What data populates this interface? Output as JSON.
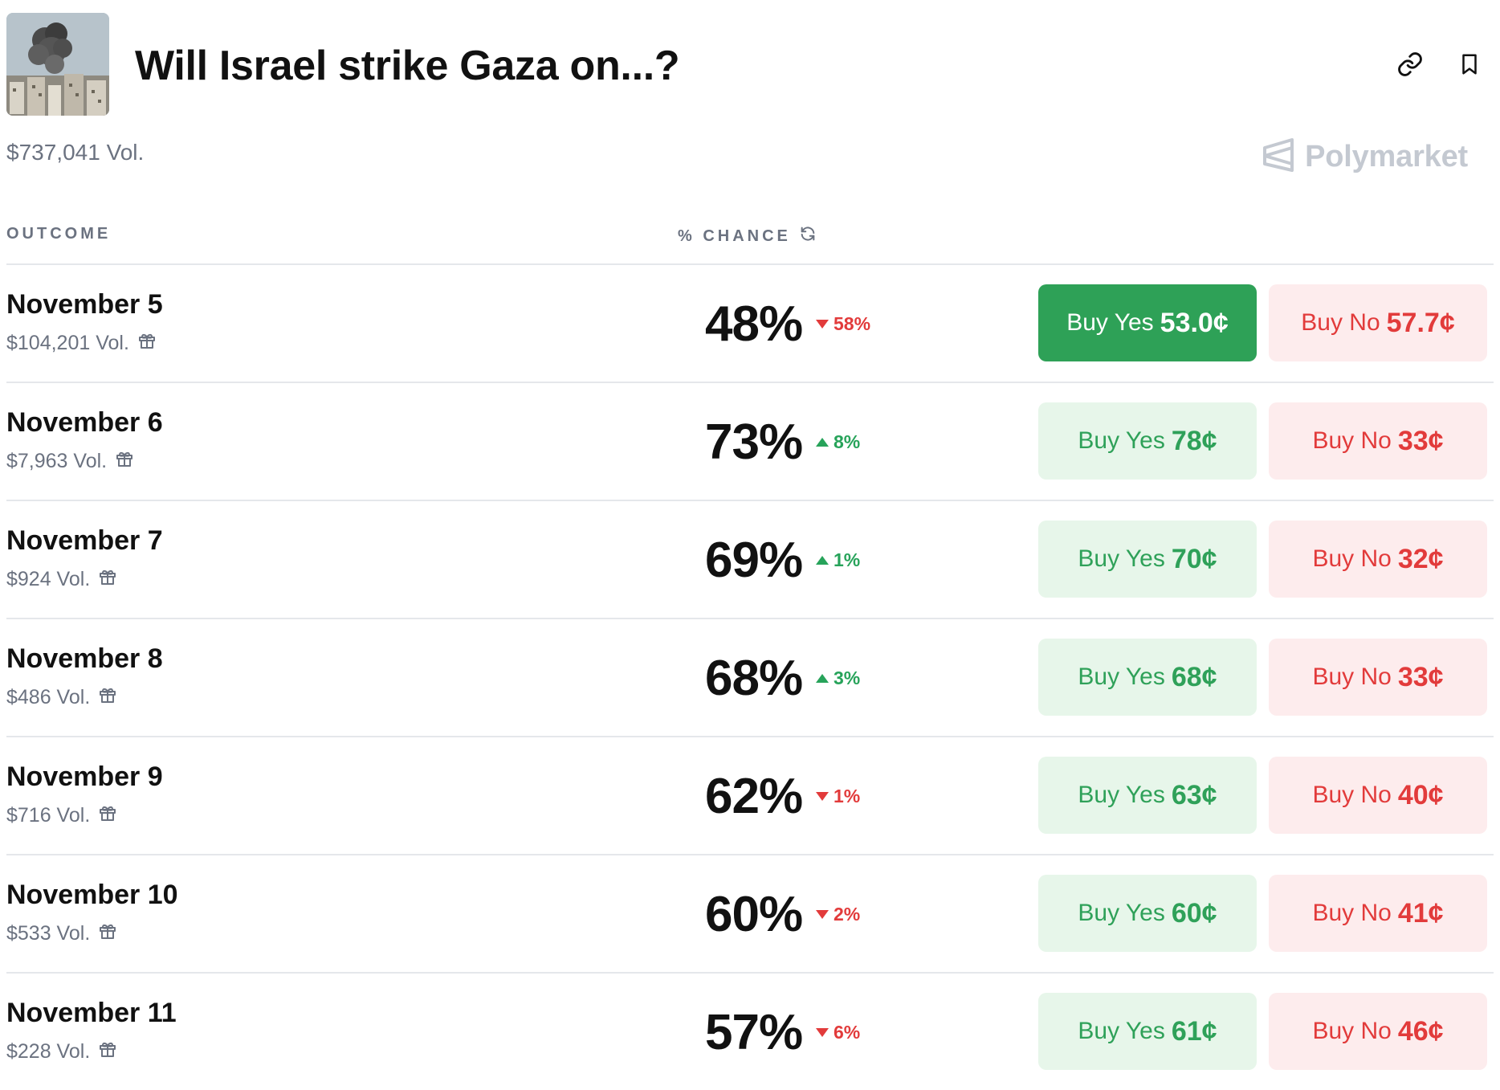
{
  "header": {
    "title": "Will Israel strike Gaza on...?",
    "thumbnail_icon": "smoke-over-city-image",
    "link_icon": "link-icon",
    "bookmark_icon": "bookmark-icon"
  },
  "summary": {
    "total_volume": "$737,041 Vol.",
    "brand": "Polymarket"
  },
  "columns": {
    "outcome": "OUTCOME",
    "chance": "% CHANCE",
    "chance_icon": "refresh-icon"
  },
  "colors": {
    "yes_green": "#2ea157",
    "yes_light": "#e7f6ea",
    "no_red": "#e23b3b",
    "no_light": "#fdeced"
  },
  "rows": [
    {
      "name": "November 5",
      "volume": "$104,201 Vol.",
      "chance": "48%",
      "delta": "58%",
      "direction": "down",
      "yes_label": "Buy Yes",
      "yes_price": "53.0¢",
      "no_label": "Buy No",
      "no_price": "57.7¢"
    },
    {
      "name": "November 6",
      "volume": "$7,963 Vol.",
      "chance": "73%",
      "delta": "8%",
      "direction": "up",
      "yes_label": "Buy Yes",
      "yes_price": "78¢",
      "no_label": "Buy No",
      "no_price": "33¢"
    },
    {
      "name": "November 7",
      "volume": "$924 Vol.",
      "chance": "69%",
      "delta": "1%",
      "direction": "up",
      "yes_label": "Buy Yes",
      "yes_price": "70¢",
      "no_label": "Buy No",
      "no_price": "32¢"
    },
    {
      "name": "November 8",
      "volume": "$486 Vol.",
      "chance": "68%",
      "delta": "3%",
      "direction": "up",
      "yes_label": "Buy Yes",
      "yes_price": "68¢",
      "no_label": "Buy No",
      "no_price": "33¢"
    },
    {
      "name": "November 9",
      "volume": "$716 Vol.",
      "chance": "62%",
      "delta": "1%",
      "direction": "down",
      "yes_label": "Buy Yes",
      "yes_price": "63¢",
      "no_label": "Buy No",
      "no_price": "40¢"
    },
    {
      "name": "November 10",
      "volume": "$533 Vol.",
      "chance": "60%",
      "delta": "2%",
      "direction": "down",
      "yes_label": "Buy Yes",
      "yes_price": "60¢",
      "no_label": "Buy No",
      "no_price": "41¢"
    },
    {
      "name": "November 11",
      "volume": "$228 Vol.",
      "chance": "57%",
      "delta": "6%",
      "direction": "down",
      "yes_label": "Buy Yes",
      "yes_price": "61¢",
      "no_label": "Buy No",
      "no_price": "46¢"
    }
  ]
}
